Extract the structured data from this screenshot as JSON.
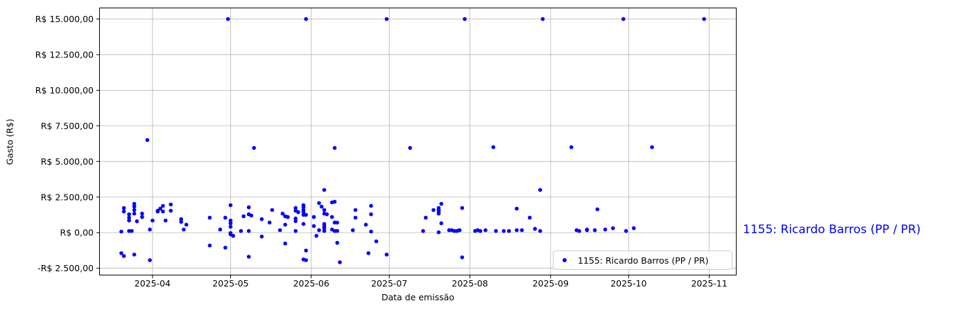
{
  "figure": {
    "right_annotation": "1155: Ricardo Barros (PP / PR)",
    "annotation_color": "#0000ff"
  },
  "chart_data": {
    "type": "scatter",
    "title": "",
    "xlabel": "Data de emissão",
    "ylabel": "Gasto (R$)",
    "grid": true,
    "grid_color": "#b3b3b3",
    "marker_color": "#0000ff",
    "x_tick_labels": [
      "2025-04",
      "2025-05",
      "2025-06",
      "2025-07",
      "2025-08",
      "2025-09",
      "2025-10",
      "2025-11"
    ],
    "y_tick_labels": [
      "R$ 15.000,00",
      "R$ 12.500,00",
      "R$ 10.000,00",
      "R$ 7.500,00",
      "R$ 5.000,00",
      "R$ 2.500,00",
      "R$ 0,00",
      "-R$ 2.500,00"
    ],
    "y_tick_values": [
      15000,
      12500,
      10000,
      7500,
      5000,
      2500,
      0,
      -2500
    ],
    "xlim": [
      "2025-03-11",
      "2025-11-11"
    ],
    "ylim": [
      -3000,
      15800
    ],
    "legend": {
      "label": "1155: Ricardo Barros (PP / PR)",
      "position": "lower right"
    },
    "series": [
      {
        "name": "1155: Ricardo Barros (PP / PR)",
        "points": [
          [
            "2025-03-20",
            75
          ],
          [
            "2025-03-21",
            1730
          ],
          [
            "2025-03-21",
            1490
          ],
          [
            "2025-03-20",
            -1440
          ],
          [
            "2025-03-21",
            -1640
          ],
          [
            "2025-03-23",
            1050
          ],
          [
            "2025-03-23",
            850
          ],
          [
            "2025-03-23",
            1290
          ],
          [
            "2025-03-23",
            120
          ],
          [
            "2025-03-24",
            120
          ],
          [
            "2025-03-25",
            2025
          ],
          [
            "2025-03-25",
            1830
          ],
          [
            "2025-03-25",
            1590
          ],
          [
            "2025-03-25",
            1340
          ],
          [
            "2025-03-25",
            -1540
          ],
          [
            "2025-03-26",
            800
          ],
          [
            "2025-03-28",
            1340
          ],
          [
            "2025-03-28",
            1100
          ],
          [
            "2025-03-30",
            6500
          ],
          [
            "2025-03-31",
            220
          ],
          [
            "2025-03-31",
            -1930
          ],
          [
            "2025-04-01",
            850
          ],
          [
            "2025-04-03",
            1540
          ],
          [
            "2025-04-03",
            1490
          ],
          [
            "2025-04-04",
            1690
          ],
          [
            "2025-04-05",
            1880
          ],
          [
            "2025-04-05",
            1490
          ],
          [
            "2025-04-06",
            850
          ],
          [
            "2025-04-08",
            1980
          ],
          [
            "2025-04-08",
            1540
          ],
          [
            "2025-04-12",
            950
          ],
          [
            "2025-04-12",
            760
          ],
          [
            "2025-04-13",
            220
          ],
          [
            "2025-04-14",
            560
          ],
          [
            "2025-04-23",
            1050
          ],
          [
            "2025-04-23",
            -900
          ],
          [
            "2025-04-27",
            220
          ],
          [
            "2025-04-29",
            1050
          ],
          [
            "2025-04-29",
            -1050
          ],
          [
            "2025-04-30",
            15000
          ],
          [
            "2025-05-01",
            1930
          ],
          [
            "2025-05-01",
            850
          ],
          [
            "2025-05-01",
            660
          ],
          [
            "2025-05-01",
            415
          ],
          [
            "2025-05-01",
            -25
          ],
          [
            "2025-05-01",
            -120
          ],
          [
            "2025-05-02",
            -220
          ],
          [
            "2025-05-05",
            120
          ],
          [
            "2025-05-06",
            1150
          ],
          [
            "2025-05-08",
            1780
          ],
          [
            "2025-05-08",
            1290
          ],
          [
            "2025-05-09",
            1200
          ],
          [
            "2025-05-08",
            120
          ],
          [
            "2025-05-08",
            -1690
          ],
          [
            "2025-05-10",
            5950
          ],
          [
            "2025-05-13",
            950
          ],
          [
            "2025-05-13",
            -270
          ],
          [
            "2025-05-16",
            710
          ],
          [
            "2025-05-17",
            1590
          ],
          [
            "2025-05-20",
            170
          ],
          [
            "2025-05-21",
            1340
          ],
          [
            "2025-05-22",
            1150
          ],
          [
            "2025-05-22",
            560
          ],
          [
            "2025-05-22",
            -760
          ],
          [
            "2025-05-23",
            1100
          ],
          [
            "2025-05-26",
            1730
          ],
          [
            "2025-05-26",
            1540
          ],
          [
            "2025-05-26",
            1000
          ],
          [
            "2025-05-26",
            810
          ],
          [
            "2025-05-26",
            120
          ],
          [
            "2025-05-27",
            1440
          ],
          [
            "2025-05-29",
            1930
          ],
          [
            "2025-05-29",
            1780
          ],
          [
            "2025-05-29",
            1590
          ],
          [
            "2025-05-29",
            1440
          ],
          [
            "2025-05-29",
            1250
          ],
          [
            "2025-05-29",
            610
          ],
          [
            "2025-05-29",
            -1880
          ],
          [
            "2025-05-30",
            1250
          ],
          [
            "2025-05-30",
            -1250
          ],
          [
            "2025-05-30",
            -1930
          ],
          [
            "2025-05-30",
            15000
          ],
          [
            "2025-06-02",
            465
          ],
          [
            "2025-06-02",
            1100
          ],
          [
            "2025-06-03",
            -220
          ],
          [
            "2025-06-04",
            2075
          ],
          [
            "2025-06-04",
            170
          ],
          [
            "2025-06-05",
            1830
          ],
          [
            "2025-06-06",
            3000
          ],
          [
            "2025-06-06",
            1590
          ],
          [
            "2025-06-06",
            1340
          ],
          [
            "2025-06-07",
            1290
          ],
          [
            "2025-06-06",
            610
          ],
          [
            "2025-06-06",
            465
          ],
          [
            "2025-06-06",
            315
          ],
          [
            "2025-06-06",
            120
          ],
          [
            "2025-06-09",
            220
          ],
          [
            "2025-06-09",
            2125
          ],
          [
            "2025-06-10",
            2170
          ],
          [
            "2025-06-09",
            1100
          ],
          [
            "2025-06-10",
            710
          ],
          [
            "2025-06-11",
            705
          ],
          [
            "2025-06-10",
            120
          ],
          [
            "2025-06-11",
            125
          ],
          [
            "2025-06-10",
            5950
          ],
          [
            "2025-06-11",
            -710
          ],
          [
            "2025-06-12",
            -2075
          ],
          [
            "2025-06-17",
            170
          ],
          [
            "2025-06-18",
            1050
          ],
          [
            "2025-06-18",
            1590
          ],
          [
            "2025-06-22",
            560
          ],
          [
            "2025-06-23",
            -1440
          ],
          [
            "2025-06-24",
            75
          ],
          [
            "2025-06-24",
            1880
          ],
          [
            "2025-06-24",
            1290
          ],
          [
            "2025-06-26",
            -610
          ],
          [
            "2025-06-30",
            -1540
          ],
          [
            "2025-06-30",
            15000
          ],
          [
            "2025-07-09",
            5950
          ],
          [
            "2025-07-14",
            120
          ],
          [
            "2025-07-15",
            1050
          ],
          [
            "2025-07-18",
            1590
          ],
          [
            "2025-07-20",
            1730
          ],
          [
            "2025-07-20",
            1590
          ],
          [
            "2025-07-20",
            1490
          ],
          [
            "2025-07-20",
            1340
          ],
          [
            "2025-07-20",
            25
          ],
          [
            "2025-07-21",
            2025
          ],
          [
            "2025-07-21",
            660
          ],
          [
            "2025-07-24",
            170
          ],
          [
            "2025-07-25",
            170
          ],
          [
            "2025-07-26",
            120
          ],
          [
            "2025-07-27",
            120
          ],
          [
            "2025-07-28",
            170
          ],
          [
            "2025-07-28",
            170
          ],
          [
            "2025-07-29",
            1730
          ],
          [
            "2025-07-29",
            -1730
          ],
          [
            "2025-07-30",
            15000
          ],
          [
            "2025-08-03",
            120
          ],
          [
            "2025-08-04",
            170
          ],
          [
            "2025-08-05",
            120
          ],
          [
            "2025-08-07",
            170
          ],
          [
            "2025-08-10",
            6000
          ],
          [
            "2025-08-11",
            120
          ],
          [
            "2025-08-14",
            120
          ],
          [
            "2025-08-16",
            120
          ],
          [
            "2025-08-19",
            1690
          ],
          [
            "2025-08-19",
            170
          ],
          [
            "2025-08-21",
            170
          ],
          [
            "2025-08-24",
            1050
          ],
          [
            "2025-08-26",
            270
          ],
          [
            "2025-08-28",
            3000
          ],
          [
            "2025-08-28",
            120
          ],
          [
            "2025-08-29",
            15000
          ],
          [
            "2025-09-09",
            6000
          ],
          [
            "2025-09-11",
            170
          ],
          [
            "2025-09-12",
            120
          ],
          [
            "2025-09-15",
            220
          ],
          [
            "2025-09-15",
            170
          ],
          [
            "2025-09-18",
            170
          ],
          [
            "2025-09-19",
            1640
          ],
          [
            "2025-09-22",
            220
          ],
          [
            "2025-09-25",
            315
          ],
          [
            "2025-09-29",
            15000
          ],
          [
            "2025-09-30",
            120
          ],
          [
            "2025-10-03",
            315
          ],
          [
            "2025-10-10",
            6000
          ],
          [
            "2025-10-30",
            15000
          ]
        ]
      }
    ]
  }
}
